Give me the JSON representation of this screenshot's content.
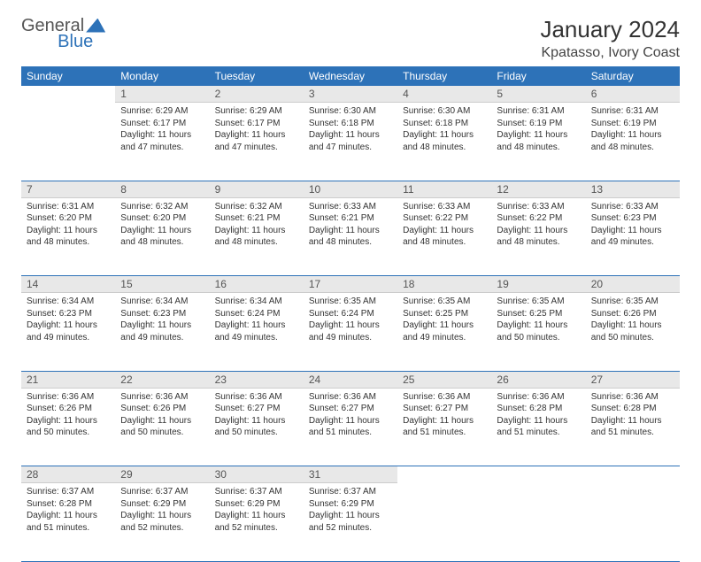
{
  "brand": {
    "part1": "General",
    "part2": "Blue"
  },
  "title": "January 2024",
  "location": "Kpatasso, Ivory Coast",
  "colors": {
    "header_bg": "#2d72b8",
    "header_text": "#ffffff",
    "daynum_bg": "#e8e8e8",
    "daynum_text": "#555555",
    "body_text": "#333333",
    "row_border": "#2d72b8",
    "background": "#ffffff"
  },
  "day_labels": [
    "Sunday",
    "Monday",
    "Tuesday",
    "Wednesday",
    "Thursday",
    "Friday",
    "Saturday"
  ],
  "weeks": [
    [
      {
        "n": "",
        "sunrise": "",
        "sunset": "",
        "daylight": ""
      },
      {
        "n": "1",
        "sunrise": "6:29 AM",
        "sunset": "6:17 PM",
        "daylight": "11 hours and 47 minutes."
      },
      {
        "n": "2",
        "sunrise": "6:29 AM",
        "sunset": "6:17 PM",
        "daylight": "11 hours and 47 minutes."
      },
      {
        "n": "3",
        "sunrise": "6:30 AM",
        "sunset": "6:18 PM",
        "daylight": "11 hours and 47 minutes."
      },
      {
        "n": "4",
        "sunrise": "6:30 AM",
        "sunset": "6:18 PM",
        "daylight": "11 hours and 48 minutes."
      },
      {
        "n": "5",
        "sunrise": "6:31 AM",
        "sunset": "6:19 PM",
        "daylight": "11 hours and 48 minutes."
      },
      {
        "n": "6",
        "sunrise": "6:31 AM",
        "sunset": "6:19 PM",
        "daylight": "11 hours and 48 minutes."
      }
    ],
    [
      {
        "n": "7",
        "sunrise": "6:31 AM",
        "sunset": "6:20 PM",
        "daylight": "11 hours and 48 minutes."
      },
      {
        "n": "8",
        "sunrise": "6:32 AM",
        "sunset": "6:20 PM",
        "daylight": "11 hours and 48 minutes."
      },
      {
        "n": "9",
        "sunrise": "6:32 AM",
        "sunset": "6:21 PM",
        "daylight": "11 hours and 48 minutes."
      },
      {
        "n": "10",
        "sunrise": "6:33 AM",
        "sunset": "6:21 PM",
        "daylight": "11 hours and 48 minutes."
      },
      {
        "n": "11",
        "sunrise": "6:33 AM",
        "sunset": "6:22 PM",
        "daylight": "11 hours and 48 minutes."
      },
      {
        "n": "12",
        "sunrise": "6:33 AM",
        "sunset": "6:22 PM",
        "daylight": "11 hours and 48 minutes."
      },
      {
        "n": "13",
        "sunrise": "6:33 AM",
        "sunset": "6:23 PM",
        "daylight": "11 hours and 49 minutes."
      }
    ],
    [
      {
        "n": "14",
        "sunrise": "6:34 AM",
        "sunset": "6:23 PM",
        "daylight": "11 hours and 49 minutes."
      },
      {
        "n": "15",
        "sunrise": "6:34 AM",
        "sunset": "6:23 PM",
        "daylight": "11 hours and 49 minutes."
      },
      {
        "n": "16",
        "sunrise": "6:34 AM",
        "sunset": "6:24 PM",
        "daylight": "11 hours and 49 minutes."
      },
      {
        "n": "17",
        "sunrise": "6:35 AM",
        "sunset": "6:24 PM",
        "daylight": "11 hours and 49 minutes."
      },
      {
        "n": "18",
        "sunrise": "6:35 AM",
        "sunset": "6:25 PM",
        "daylight": "11 hours and 49 minutes."
      },
      {
        "n": "19",
        "sunrise": "6:35 AM",
        "sunset": "6:25 PM",
        "daylight": "11 hours and 50 minutes."
      },
      {
        "n": "20",
        "sunrise": "6:35 AM",
        "sunset": "6:26 PM",
        "daylight": "11 hours and 50 minutes."
      }
    ],
    [
      {
        "n": "21",
        "sunrise": "6:36 AM",
        "sunset": "6:26 PM",
        "daylight": "11 hours and 50 minutes."
      },
      {
        "n": "22",
        "sunrise": "6:36 AM",
        "sunset": "6:26 PM",
        "daylight": "11 hours and 50 minutes."
      },
      {
        "n": "23",
        "sunrise": "6:36 AM",
        "sunset": "6:27 PM",
        "daylight": "11 hours and 50 minutes."
      },
      {
        "n": "24",
        "sunrise": "6:36 AM",
        "sunset": "6:27 PM",
        "daylight": "11 hours and 51 minutes."
      },
      {
        "n": "25",
        "sunrise": "6:36 AM",
        "sunset": "6:27 PM",
        "daylight": "11 hours and 51 minutes."
      },
      {
        "n": "26",
        "sunrise": "6:36 AM",
        "sunset": "6:28 PM",
        "daylight": "11 hours and 51 minutes."
      },
      {
        "n": "27",
        "sunrise": "6:36 AM",
        "sunset": "6:28 PM",
        "daylight": "11 hours and 51 minutes."
      }
    ],
    [
      {
        "n": "28",
        "sunrise": "6:37 AM",
        "sunset": "6:28 PM",
        "daylight": "11 hours and 51 minutes."
      },
      {
        "n": "29",
        "sunrise": "6:37 AM",
        "sunset": "6:29 PM",
        "daylight": "11 hours and 52 minutes."
      },
      {
        "n": "30",
        "sunrise": "6:37 AM",
        "sunset": "6:29 PM",
        "daylight": "11 hours and 52 minutes."
      },
      {
        "n": "31",
        "sunrise": "6:37 AM",
        "sunset": "6:29 PM",
        "daylight": "11 hours and 52 minutes."
      },
      {
        "n": "",
        "sunrise": "",
        "sunset": "",
        "daylight": ""
      },
      {
        "n": "",
        "sunrise": "",
        "sunset": "",
        "daylight": ""
      },
      {
        "n": "",
        "sunrise": "",
        "sunset": "",
        "daylight": ""
      }
    ]
  ],
  "labels": {
    "sunrise_prefix": "Sunrise: ",
    "sunset_prefix": "Sunset: ",
    "daylight_prefix": "Daylight: "
  }
}
